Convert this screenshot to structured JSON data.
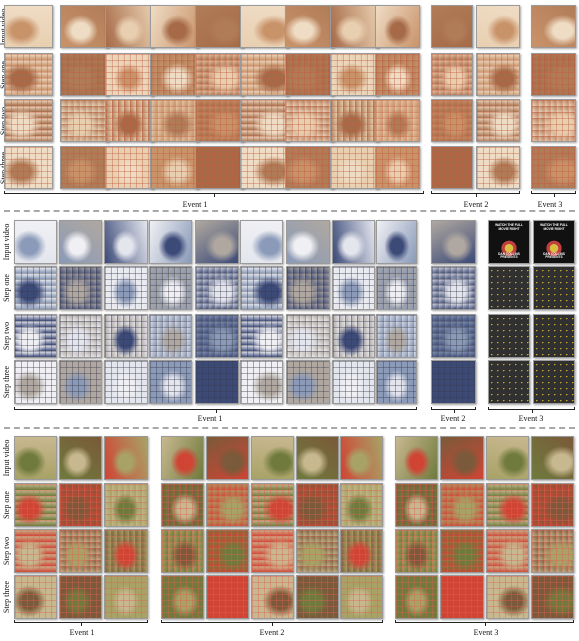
{
  "row_labels": [
    "Input video",
    "Step one",
    "Step two",
    "Step three"
  ],
  "panels": [
    {
      "id": "panel-1",
      "event_labels": [
        "Event 1",
        "Event 2",
        "Event 3"
      ]
    },
    {
      "id": "panel-2",
      "event_labels": [
        "Event 1",
        "Event 2",
        "Event 3"
      ]
    },
    {
      "id": "panel-3",
      "event_labels": [
        "Event 1",
        "Event 2",
        "Event 3"
      ]
    }
  ],
  "poster_text": {
    "title": "WATCH THE FULL MOVIE RIGHT",
    "subtitle": "DAN COLLINS PRESENTS"
  },
  "colors": {
    "panel1_base": "#d8b590",
    "panel1_grid": "#c45a3c",
    "panel2_base": "#c8c8d2",
    "panel2_grid": "#3a3a4a",
    "panel3_base": "#9c9a64",
    "panel3_grid": "#e06050",
    "separator": "#a8a8a8"
  }
}
